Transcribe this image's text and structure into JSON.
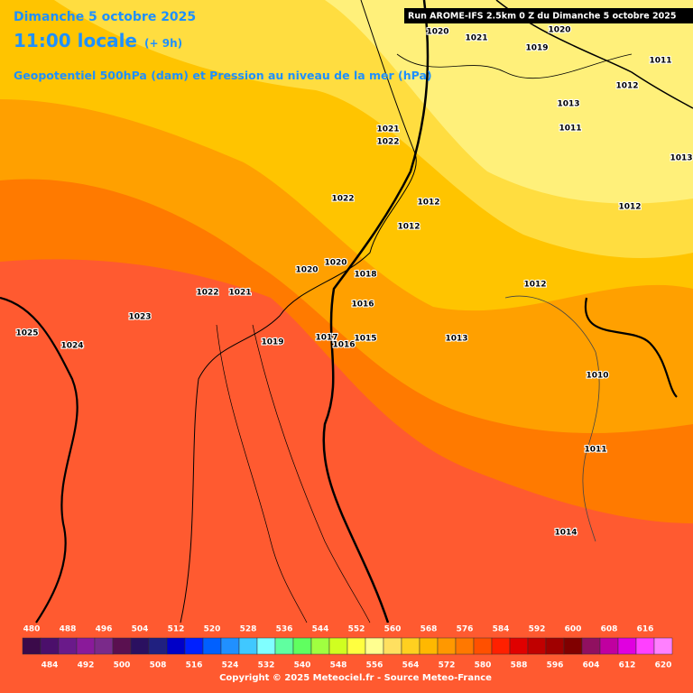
{
  "header": {
    "date": "Dimanche 5 octobre 2025",
    "time": "11:00 locale",
    "lead": "(+ 9h)",
    "subtitle": "Geopotentiel 500hPa (dam) et Pression au niveau de la mer (hPa)",
    "run": "Run AROME-IFS 2.5km 0 Z du Dimanche 5 octobre 2025"
  },
  "isobar_labels": [
    "1020",
    "1021",
    "1020",
    "1019",
    "1011",
    "1012",
    "1013",
    "1011",
    "1013",
    "1021",
    "1022",
    "1022",
    "1012",
    "1012",
    "1012",
    "1020",
    "1020",
    "1018",
    "1012",
    "1022",
    "1021",
    "1016",
    "1023",
    "1025",
    "1024",
    "1019",
    "1017",
    "1016",
    "1015",
    "1013",
    "1010",
    "1011",
    "1014"
  ],
  "scale": {
    "values": [
      480,
      484,
      488,
      492,
      496,
      500,
      504,
      508,
      512,
      516,
      520,
      524,
      528,
      532,
      536,
      540,
      544,
      548,
      552,
      556,
      560,
      564,
      568,
      572,
      576,
      580,
      584,
      588,
      592,
      596,
      600,
      604,
      608,
      612,
      616,
      620
    ],
    "colors": [
      "#3b0a4a",
      "#4b0f6b",
      "#6a1a8a",
      "#8a1a9a",
      "#7a2a8a",
      "#5a1050",
      "#2a1060",
      "#202080",
      "#0000c8",
      "#0020ff",
      "#0060ff",
      "#2090ff",
      "#40c8ff",
      "#80ffff",
      "#60ffa0",
      "#60ff60",
      "#a0ff40",
      "#d0ff20",
      "#ffff40",
      "#ffff90",
      "#ffe060",
      "#ffd020",
      "#ffb800",
      "#ff9800",
      "#ff7800",
      "#ff5000",
      "#ff2000",
      "#e00000",
      "#c00000",
      "#a00000",
      "#800000",
      "#901060",
      "#c000a0",
      "#e000e0",
      "#ff40ff",
      "#ff80ff"
    ]
  },
  "footer": {
    "copyright": "Copyright © 2025 Meteociel.fr - Source Meteo-France"
  }
}
